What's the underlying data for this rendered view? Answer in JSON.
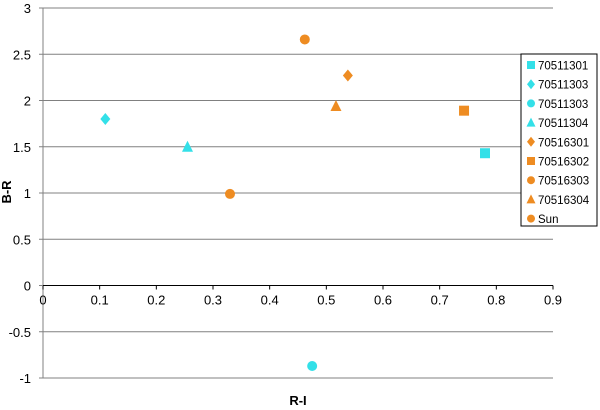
{
  "chart_data": {
    "type": "scatter",
    "title": "",
    "xlabel": "R-I",
    "ylabel": "B-R",
    "xlim": [
      0,
      0.9
    ],
    "ylim": [
      -1,
      3
    ],
    "xticks": [
      "0",
      "0.1",
      "0.2",
      "0.3",
      "0.4",
      "0.5",
      "0.6",
      "0.7",
      "0.8",
      "0.9"
    ],
    "yticks": [
      "-1",
      "-0.5",
      "0",
      "0.5",
      "1",
      "1.5",
      "2",
      "2.5",
      "3"
    ],
    "xtick_values": [
      0,
      0.1,
      0.2,
      0.3,
      0.4,
      0.5,
      0.6,
      0.7,
      0.8,
      0.9
    ],
    "ytick_values": [
      -1,
      -0.5,
      0,
      0.5,
      1,
      1.5,
      2,
      2.5,
      3
    ],
    "grid": "horizontal",
    "legend_position": "right",
    "series": [
      {
        "name": "70511301",
        "marker": "square",
        "color": "#33e0e8",
        "x": [
          0.78
        ],
        "y": [
          1.43
        ]
      },
      {
        "name": "70511303",
        "marker": "diamond",
        "color": "#33e0e8",
        "x": [
          0.11
        ],
        "y": [
          1.8
        ]
      },
      {
        "name": "70511303",
        "marker": "circle",
        "color": "#33e0e8",
        "x": [
          0.475
        ],
        "y": [
          -0.87
        ]
      },
      {
        "name": "70511304",
        "marker": "triangle",
        "color": "#33e0e8",
        "x": [
          0.255
        ],
        "y": [
          1.5
        ]
      },
      {
        "name": "70516301",
        "marker": "diamond",
        "color": "#ee8c22",
        "x": [
          0.538
        ],
        "y": [
          2.27
        ]
      },
      {
        "name": "70516302",
        "marker": "square",
        "color": "#ee8c22",
        "x": [
          0.743
        ],
        "y": [
          1.89
        ]
      },
      {
        "name": "70516303",
        "marker": "circle",
        "color": "#ee8c22",
        "x": [
          0.462
        ],
        "y": [
          2.66
        ]
      },
      {
        "name": "70516304",
        "marker": "triangle",
        "color": "#ee8c22",
        "x": [
          0.517
        ],
        "y": [
          1.94
        ]
      },
      {
        "name": "Sun",
        "marker": "circle",
        "color": "#ee8c22",
        "x": [
          0.33
        ],
        "y": [
          0.99
        ]
      }
    ]
  }
}
